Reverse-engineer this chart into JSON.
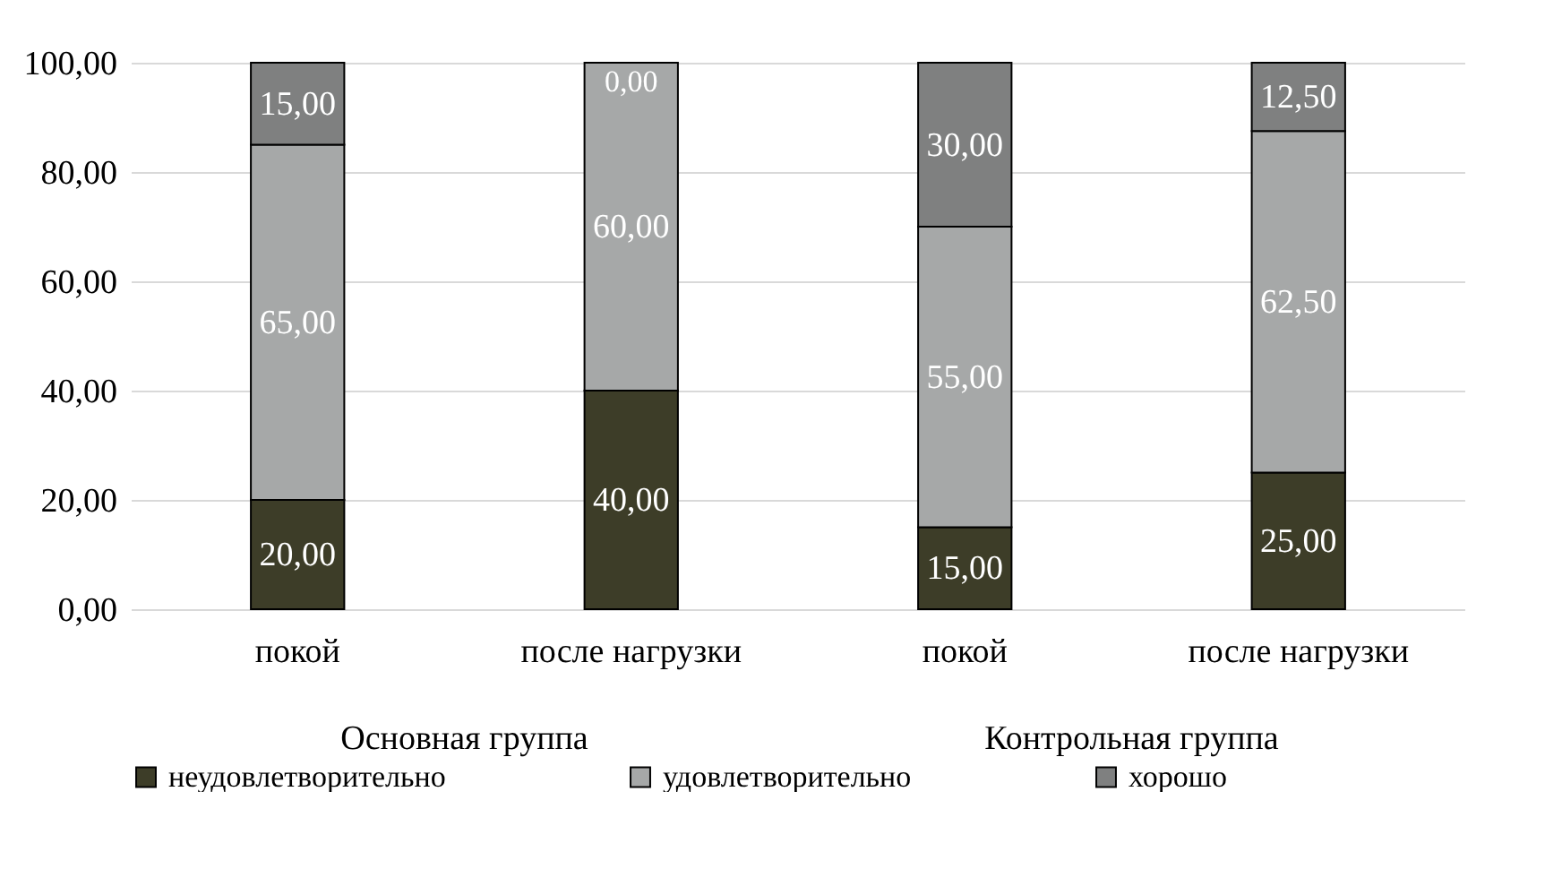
{
  "chart_data": {
    "type": "bar",
    "stacked": true,
    "categories": [
      "покой",
      "после нагрузки",
      "покой",
      "после нагрузки"
    ],
    "annotations": [
      "Основная группа",
      "Контрольная группа"
    ],
    "series": [
      {
        "name": "неудовлетворительно",
        "color": "#3d3d28",
        "values": [
          20,
          40,
          15,
          25
        ],
        "value_labels": [
          "20,00",
          "40,00",
          "15,00",
          "25,00"
        ]
      },
      {
        "name": "удовлетворительно",
        "color": "#a6a8a8",
        "values": [
          65,
          60,
          55,
          62.5
        ],
        "value_labels": [
          "65,00",
          "60,00",
          "55,00",
          "62,50"
        ]
      },
      {
        "name": "хорошо",
        "color": "#7f8080",
        "values": [
          15,
          0,
          30,
          12.5
        ],
        "value_labels": [
          "15,00",
          "0,00",
          "30,00",
          "12,50"
        ]
      }
    ],
    "ylim": [
      0,
      100
    ],
    "yticks": [
      {
        "value": 0,
        "label": "0,00"
      },
      {
        "value": 20,
        "label": "20,00"
      },
      {
        "value": 40,
        "label": "40,00"
      },
      {
        "value": 60,
        "label": "60,00"
      },
      {
        "value": 80,
        "label": "80,00"
      },
      {
        "value": 100,
        "label": "100,00"
      }
    ],
    "grid": "y",
    "legend": "bottom"
  }
}
